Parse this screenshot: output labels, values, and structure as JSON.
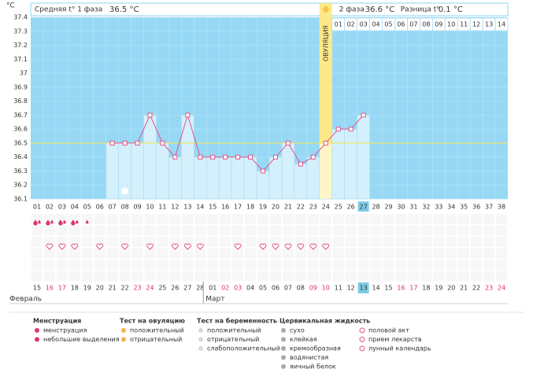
{
  "chart_data": {
    "type": "line",
    "y_label": "°C",
    "header": {
      "phase1_label": "Средняя t° 1 фаза",
      "phase1_value": "36.5 °C",
      "phase2_label": "2 фаза",
      "phase2_value": "36.6 °C",
      "diff_label": "Разница t°",
      "diff_value": "0.1 °C"
    },
    "categories": [
      "01",
      "02",
      "03",
      "04",
      "05",
      "06",
      "07",
      "08",
      "09",
      "10",
      "11",
      "12",
      "13",
      "14",
      "15",
      "16",
      "17",
      "18",
      "19",
      "20",
      "21",
      "22",
      "23",
      "24",
      "25",
      "26",
      "27",
      "28",
      "29",
      "30",
      "31",
      "32",
      "33",
      "34",
      "35",
      "36",
      "37",
      "38"
    ],
    "values": [
      null,
      null,
      null,
      null,
      null,
      null,
      36.5,
      36.5,
      36.5,
      36.7,
      36.5,
      36.4,
      36.7,
      36.4,
      36.4,
      36.4,
      36.4,
      36.4,
      36.3,
      36.4,
      36.5,
      36.35,
      36.4,
      36.5,
      36.6,
      36.6,
      36.7,
      null,
      null,
      null,
      null,
      null,
      null,
      null,
      null,
      null,
      null,
      null
    ],
    "color": "#e0558a",
    "ylim": [
      36.1,
      37.4
    ],
    "yticks": [
      36.1,
      36.2,
      36.3,
      36.4,
      36.5,
      36.6,
      36.7,
      36.8,
      36.9,
      37,
      37.1,
      37.2,
      37.3,
      37.4
    ],
    "cover_line": 36.5,
    "ovulation_day": 24,
    "ovulation_label": "ОВУЛЯЦИЯ",
    "today_day": 27,
    "phase2_days": [
      "01",
      "02",
      "03",
      "04",
      "05",
      "06",
      "07",
      "08",
      "09",
      "10",
      "11",
      "12",
      "13",
      "14"
    ],
    "menstruation_days": [
      1,
      2,
      3,
      4
    ],
    "spotting_days": [
      5
    ],
    "intercourse_days": [
      2,
      3,
      4,
      6,
      8,
      10,
      12,
      13,
      14,
      17,
      19,
      20,
      21,
      22,
      23,
      24
    ],
    "lunar_days": [
      8
    ],
    "dates": [
      {
        "text": "15",
        "weekend": false
      },
      {
        "text": "16",
        "weekend": true
      },
      {
        "text": "17",
        "weekend": true
      },
      {
        "text": "18",
        "weekend": false
      },
      {
        "text": "19",
        "weekend": false
      },
      {
        "text": "20",
        "weekend": false
      },
      {
        "text": "21",
        "weekend": false
      },
      {
        "text": "22",
        "weekend": false
      },
      {
        "text": "23",
        "weekend": true
      },
      {
        "text": "24",
        "weekend": true
      },
      {
        "text": "25",
        "weekend": false
      },
      {
        "text": "26",
        "weekend": false
      },
      {
        "text": "27",
        "weekend": false
      },
      {
        "text": "28",
        "weekend": false
      },
      {
        "text": "01",
        "weekend": false
      },
      {
        "text": "02",
        "weekend": true
      },
      {
        "text": "03",
        "weekend": true
      },
      {
        "text": "04",
        "weekend": false
      },
      {
        "text": "05",
        "weekend": false
      },
      {
        "text": "06",
        "weekend": false
      },
      {
        "text": "07",
        "weekend": false
      },
      {
        "text": "08",
        "weekend": false
      },
      {
        "text": "09",
        "weekend": true
      },
      {
        "text": "10",
        "weekend": true
      },
      {
        "text": "11",
        "weekend": false
      },
      {
        "text": "12",
        "weekend": false
      },
      {
        "text": "13",
        "weekend": false
      },
      {
        "text": "14",
        "weekend": false
      },
      {
        "text": "15",
        "weekend": false
      },
      {
        "text": "16",
        "weekend": true
      },
      {
        "text": "17",
        "weekend": true
      },
      {
        "text": "18",
        "weekend": false
      },
      {
        "text": "19",
        "weekend": false
      },
      {
        "text": "20",
        "weekend": false
      },
      {
        "text": "21",
        "weekend": false
      },
      {
        "text": "22",
        "weekend": false
      },
      {
        "text": "23",
        "weekend": true
      },
      {
        "text": "24",
        "weekend": true
      }
    ],
    "months": [
      {
        "text": "Февраль",
        "day": 1
      },
      {
        "text": "Март",
        "day": 15
      }
    ],
    "legend": [
      {
        "title": "Менструация",
        "items": [
          "менструация",
          "небольшие выделения"
        ]
      },
      {
        "title": "Тест на овуляцию",
        "items": [
          "положительный",
          "отрицательный"
        ]
      },
      {
        "title": "Тест на беременность",
        "items": [
          "положительный",
          "отрицательный",
          "слабоположительный"
        ]
      },
      {
        "title": "Цервикальная жидкость",
        "items": [
          "сухо",
          "клейкая",
          "кремообразная",
          "водянистая",
          "яичный белок"
        ]
      },
      {
        "items": [
          "половой акт",
          "прием лекарств",
          "лунный календарь"
        ]
      }
    ]
  }
}
